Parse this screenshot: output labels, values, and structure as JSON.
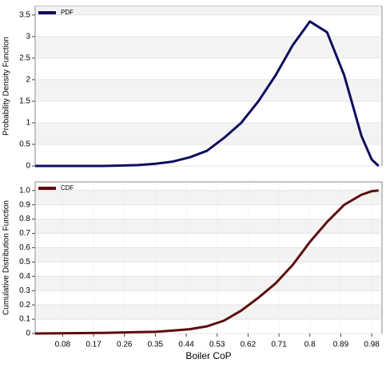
{
  "chart_data": [
    {
      "type": "line",
      "ylabel": "Probability Density Function",
      "legend": "top-left",
      "series": [
        {
          "name": "PDF",
          "color": "#0d0d5e",
          "values": [
            0,
            0,
            0,
            0,
            0,
            0.01,
            0.02,
            0.05,
            0.1,
            0.2,
            0.35,
            0.65,
            1.0,
            1.5,
            2.1,
            2.8,
            3.35,
            3.1,
            2.1,
            0.7,
            0.15,
            0
          ]
        }
      ],
      "x": [
        0,
        0.05,
        0.1,
        0.15,
        0.2,
        0.25,
        0.3,
        0.35,
        0.4,
        0.45,
        0.5,
        0.55,
        0.6,
        0.65,
        0.7,
        0.75,
        0.8,
        0.85,
        0.9,
        0.95,
        0.98,
        1.0
      ],
      "xlim": [
        0,
        1.01
      ],
      "ylim": [
        0,
        3.7
      ],
      "yticks": [
        0,
        0.5,
        1,
        1.5,
        2,
        2.5,
        3,
        3.5
      ],
      "grid": true
    },
    {
      "type": "line",
      "xlabel": "Boiler CoP",
      "ylabel": "Cumulative Distribution Function",
      "legend": "top-left",
      "series": [
        {
          "name": "CDF",
          "color": "#5e0d0d",
          "values": [
            0,
            0.002,
            0.004,
            0.01,
            0.012,
            0.02,
            0.03,
            0.05,
            0.09,
            0.16,
            0.25,
            0.35,
            0.48,
            0.64,
            0.78,
            0.9,
            0.97,
            0.995,
            1.0
          ]
        }
      ],
      "x": [
        0,
        0.1,
        0.2,
        0.3,
        0.35,
        0.4,
        0.45,
        0.5,
        0.55,
        0.6,
        0.65,
        0.7,
        0.75,
        0.8,
        0.85,
        0.9,
        0.95,
        0.98,
        1.0
      ],
      "xlim": [
        0,
        1.01
      ],
      "ylim": [
        0,
        1.06
      ],
      "xticks": [
        0.08,
        0.17,
        0.26,
        0.35,
        0.44,
        0.53,
        0.62,
        0.71,
        0.8,
        0.89,
        0.98
      ],
      "yticks": [
        0,
        0.1,
        0.2,
        0.3,
        0.4,
        0.5,
        0.6,
        0.7,
        0.8,
        0.9,
        {
          "value": 1,
          "label": "1.0"
        }
      ],
      "grid": true
    }
  ]
}
